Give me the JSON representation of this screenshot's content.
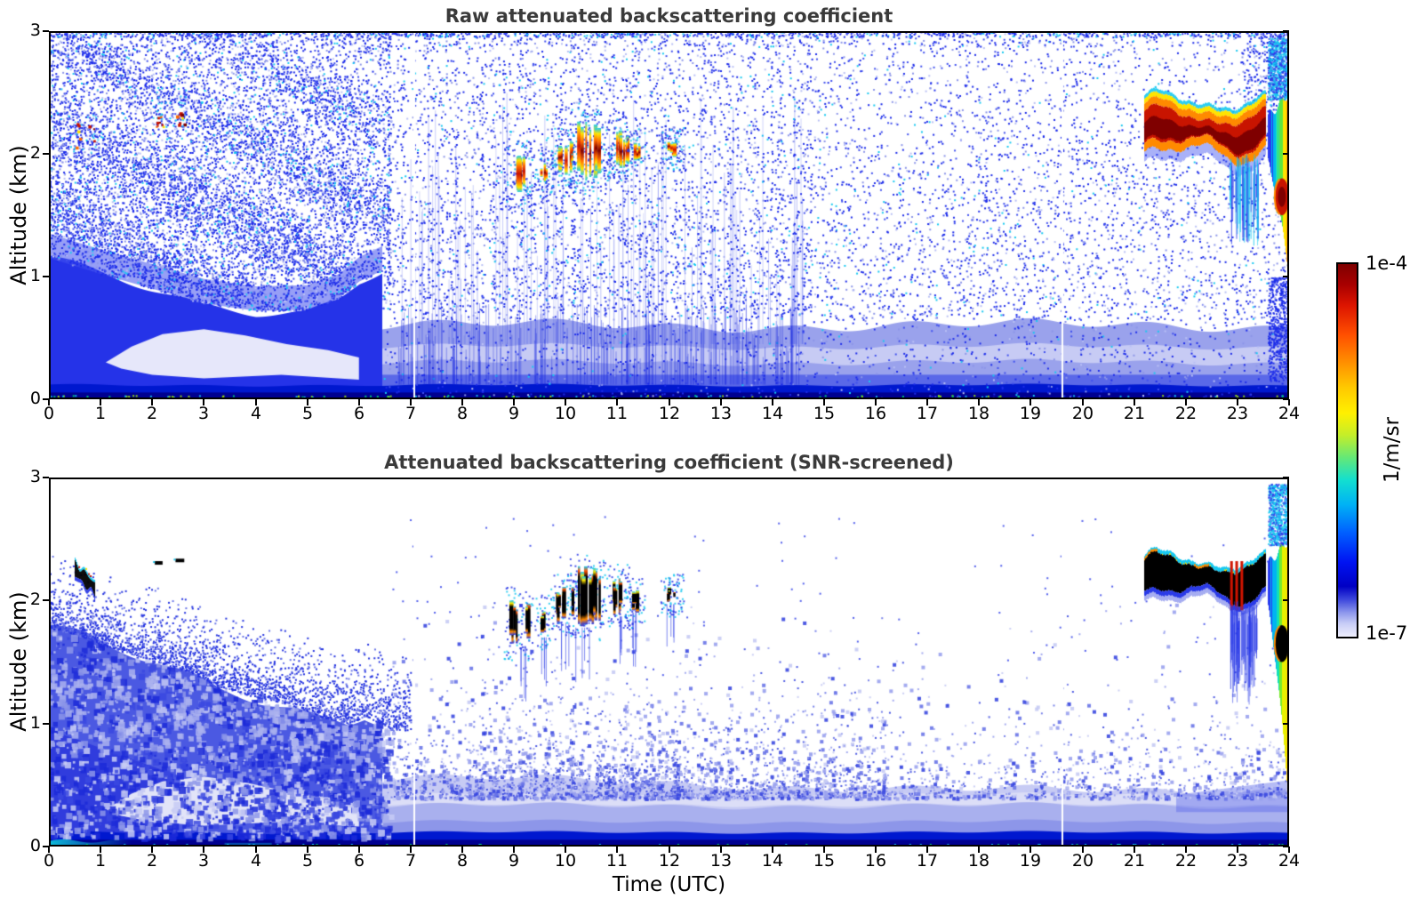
{
  "chart_data": {
    "type": "heatmap",
    "panels": [
      {
        "id": "raw",
        "title": "Raw attenuated backscattering coefficient",
        "screened": false
      },
      {
        "id": "screened",
        "title": "Attenuated backscattering coefficient (SNR-screened)",
        "screened": true
      }
    ],
    "x": {
      "label": "Time (UTC)",
      "range": [
        0,
        24
      ],
      "ticks": [
        0,
        1,
        2,
        3,
        4,
        5,
        6,
        7,
        8,
        9,
        10,
        11,
        12,
        13,
        14,
        15,
        16,
        17,
        18,
        19,
        20,
        21,
        22,
        23,
        24
      ]
    },
    "y": {
      "label": "Altitude (km)",
      "range": [
        0,
        3
      ],
      "ticks": [
        0,
        1,
        2,
        3
      ]
    },
    "colorbar": {
      "label": "1/m/sr",
      "scale": "log",
      "min": 1e-07,
      "max": 0.0001,
      "min_label": "1e-7",
      "max_label": "1e-4",
      "gradient": [
        {
          "p": 0,
          "c": "#7f0000"
        },
        {
          "p": 0.055,
          "c": "#a80000"
        },
        {
          "p": 0.11,
          "c": "#dc1400"
        },
        {
          "p": 0.19,
          "c": "#ff5000"
        },
        {
          "p": 0.26,
          "c": "#ff8c00"
        },
        {
          "p": 0.33,
          "c": "#ffc800"
        },
        {
          "p": 0.4,
          "c": "#fff000"
        },
        {
          "p": 0.46,
          "c": "#c3ee2a"
        },
        {
          "p": 0.52,
          "c": "#63e878"
        },
        {
          "p": 0.58,
          "c": "#12dfd0"
        },
        {
          "p": 0.645,
          "c": "#00b2f5"
        },
        {
          "p": 0.72,
          "c": "#0060ff"
        },
        {
          "p": 0.8,
          "c": "#0013f2"
        },
        {
          "p": 0.865,
          "c": "#0000c4"
        },
        {
          "p": 0.9,
          "c": "#3c46dc"
        },
        {
          "p": 0.935,
          "c": "#8c96ec"
        },
        {
          "p": 0.965,
          "c": "#c8cdf6"
        },
        {
          "p": 1,
          "c": "#efeffd"
        }
      ]
    },
    "features": {
      "data_gap_utc": [
        7.05,
        19.6
      ],
      "boundary_layer_top_km": [
        [
          0,
          1.78
        ],
        [
          0.7,
          1.7
        ],
        [
          1.3,
          1.6
        ],
        [
          2,
          1.52
        ],
        [
          2.7,
          1.42
        ],
        [
          3.3,
          1.3
        ],
        [
          4,
          1.22
        ],
        [
          4.7,
          1.15
        ],
        [
          5.3,
          1.05
        ],
        [
          5.8,
          1.0
        ],
        [
          6.1,
          1.06
        ],
        [
          6.45,
          1.0
        ],
        [
          6.6,
          0.95
        ]
      ],
      "raw_solid_top_km": [
        [
          0,
          1.15
        ],
        [
          1,
          1.02
        ],
        [
          2,
          0.9
        ],
        [
          3,
          0.78
        ],
        [
          4,
          0.72
        ],
        [
          5,
          0.73
        ],
        [
          5.6,
          0.82
        ],
        [
          6,
          0.96
        ],
        [
          6.45,
          1.05
        ],
        [
          6.6,
          0.9
        ]
      ],
      "clear_tongue_km": {
        "top": [
          [
            1.1,
            0.3
          ],
          [
            1.6,
            0.43
          ],
          [
            2.2,
            0.53
          ],
          [
            3.0,
            0.57
          ],
          [
            3.8,
            0.52
          ],
          [
            4.6,
            0.45
          ],
          [
            5.4,
            0.4
          ],
          [
            6.0,
            0.34
          ]
        ],
        "bottom": [
          [
            6.0,
            0.16
          ],
          [
            4.5,
            0.2
          ],
          [
            3.0,
            0.17
          ],
          [
            2.0,
            0.2
          ],
          [
            1.4,
            0.25
          ]
        ]
      },
      "morning_cloud_specks": [
        {
          "t": [
            0.5,
            0.88
          ],
          "alt": [
            2.05,
            2.3
          ]
        },
        {
          "t": [
            2.05,
            2.2
          ],
          "alt": [
            2.22,
            2.32
          ]
        },
        {
          "t": [
            2.45,
            2.62
          ],
          "alt": [
            2.24,
            2.34
          ]
        }
      ],
      "cloud_streak_clusters": [
        {
          "t": [
            8.9,
            9.25
          ],
          "alt": [
            1.62,
            2.02
          ]
        },
        {
          "t": [
            9.5,
            9.63
          ],
          "alt": [
            1.7,
            1.95
          ]
        },
        {
          "t": [
            9.8,
            10.12
          ],
          "alt": [
            1.82,
            2.12
          ]
        },
        {
          "t": [
            10.18,
            10.65
          ],
          "alt": [
            1.78,
            2.28
          ]
        },
        {
          "t": [
            10.87,
            11.18
          ],
          "alt": [
            1.87,
            2.2
          ]
        },
        {
          "t": [
            11.27,
            11.42
          ],
          "alt": [
            1.9,
            2.1
          ]
        },
        {
          "t": [
            11.92,
            12.18
          ],
          "alt": [
            1.97,
            2.12
          ]
        }
      ],
      "evening_cloud_band": {
        "t": [
          21.2,
          23.55
        ],
        "alt_center": 2.18,
        "wave_amplitude_km": 0.08,
        "half_thickness_km": 0.09
      },
      "virga": {
        "t": [
          22.85,
          23.4
        ],
        "alt": [
          1.25,
          2.0
        ]
      },
      "precip_column": {
        "t": [
          23.58,
          24.0
        ],
        "alt_top": 2.45,
        "alt_bottom_start": 1.95,
        "alt_bottom_end_raw": 0.95,
        "alt_bottom_end_screened": 0.25
      },
      "embedded_strong_echo": {
        "t": [
          23.72,
          24.0
        ],
        "alt": [
          1.5,
          1.8
        ]
      },
      "surface_layers_alt_km": [
        0,
        0.55
      ]
    },
    "render_palette": {
      "navy": "#000090",
      "blue_strong": "#0018cf",
      "blue_deep": "#1d2cea",
      "blue_mid": "#4151ef",
      "blue_block": "#4b59e2",
      "blue_halo": "#2a3ae8",
      "periwinkle": "#8d96e9",
      "periwinkle2": "#9aa2ec",
      "periwinkle_light": "#c7cbf4",
      "lavender": "#dcdef7",
      "pale": "#e6e7fa",
      "pale2": "#e2e4f8",
      "cyan": "#17c9f1",
      "teal": "#10cfe0",
      "green": "#5fe63e",
      "yellow": "#ffe400",
      "orange": "#ff8a00",
      "orange2": "#ff6a00",
      "red": "#c81400",
      "red2": "#d01400",
      "dark_red": "#7f0000",
      "black": "#000000"
    }
  }
}
